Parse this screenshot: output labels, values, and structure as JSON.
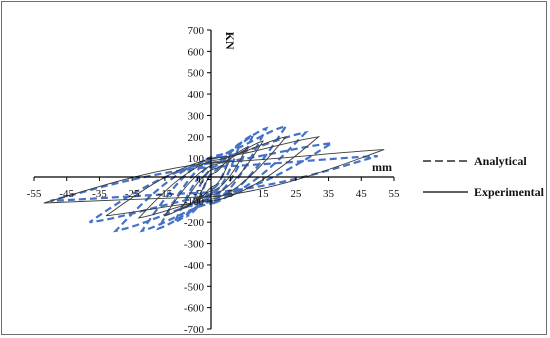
{
  "chart_data": {
    "type": "line",
    "title": "",
    "xlabel": "mm",
    "ylabel": "KN",
    "xlim": [
      -55,
      55
    ],
    "ylim": [
      -700,
      700
    ],
    "x_ticks": [
      -55,
      -45,
      -35,
      -25,
      -15,
      -5,
      5,
      15,
      25,
      35,
      45,
      55
    ],
    "y_ticks": [
      -700,
      -600,
      -500,
      -400,
      -300,
      -200,
      -100,
      0,
      100,
      200,
      300,
      400,
      500,
      600,
      700
    ],
    "grid": false,
    "legend_position": "right",
    "series": [
      {
        "name": "Analytical",
        "style": "dashed",
        "color": "#4472c4",
        "loops": [
          {
            "amp_pos": 5,
            "amp_neg": -5,
            "peak_pos": 120,
            "peak_neg": -120,
            "thickness": 40
          },
          {
            "amp_pos": 8,
            "amp_neg": -8,
            "peak_pos": 170,
            "peak_neg": -170,
            "thickness": 60
          },
          {
            "amp_pos": 12,
            "amp_neg": -12,
            "peak_pos": 210,
            "peak_neg": -200,
            "thickness": 80
          },
          {
            "amp_pos": 16,
            "amp_neg": -17,
            "peak_pos": 240,
            "peak_neg": -230,
            "thickness": 100
          },
          {
            "amp_pos": 22,
            "amp_neg": -22,
            "peak_pos": 250,
            "peak_neg": -240,
            "thickness": 110
          },
          {
            "amp_pos": 28,
            "amp_neg": -30,
            "peak_pos": 220,
            "peak_neg": -240,
            "thickness": 100
          },
          {
            "amp_pos": 36,
            "amp_neg": -38,
            "peak_pos": 170,
            "peak_neg": -200,
            "thickness": 80
          },
          {
            "amp_pos": 50,
            "amp_neg": -50,
            "peak_pos": 110,
            "peak_neg": -100,
            "thickness": 60
          }
        ]
      },
      {
        "name": "Experimental",
        "style": "solid",
        "color": "#3a3a3a",
        "loops": [
          {
            "amp_pos": 5,
            "amp_neg": -5,
            "peak_pos": 100,
            "peak_neg": -100,
            "thickness": 30
          },
          {
            "amp_pos": 10,
            "amp_neg": -10,
            "peak_pos": 150,
            "peak_neg": -140,
            "thickness": 50
          },
          {
            "amp_pos": 15,
            "amp_neg": -15,
            "peak_pos": 180,
            "peak_neg": -170,
            "thickness": 70
          },
          {
            "amp_pos": 22,
            "amp_neg": -23,
            "peak_pos": 200,
            "peak_neg": -180,
            "thickness": 90
          },
          {
            "amp_pos": 32,
            "amp_neg": -33,
            "peak_pos": 200,
            "peak_neg": -170,
            "thickness": 100
          },
          {
            "amp_pos": 52,
            "amp_neg": -52,
            "peak_pos": 140,
            "peak_neg": -110,
            "thickness": 80
          }
        ]
      }
    ]
  }
}
